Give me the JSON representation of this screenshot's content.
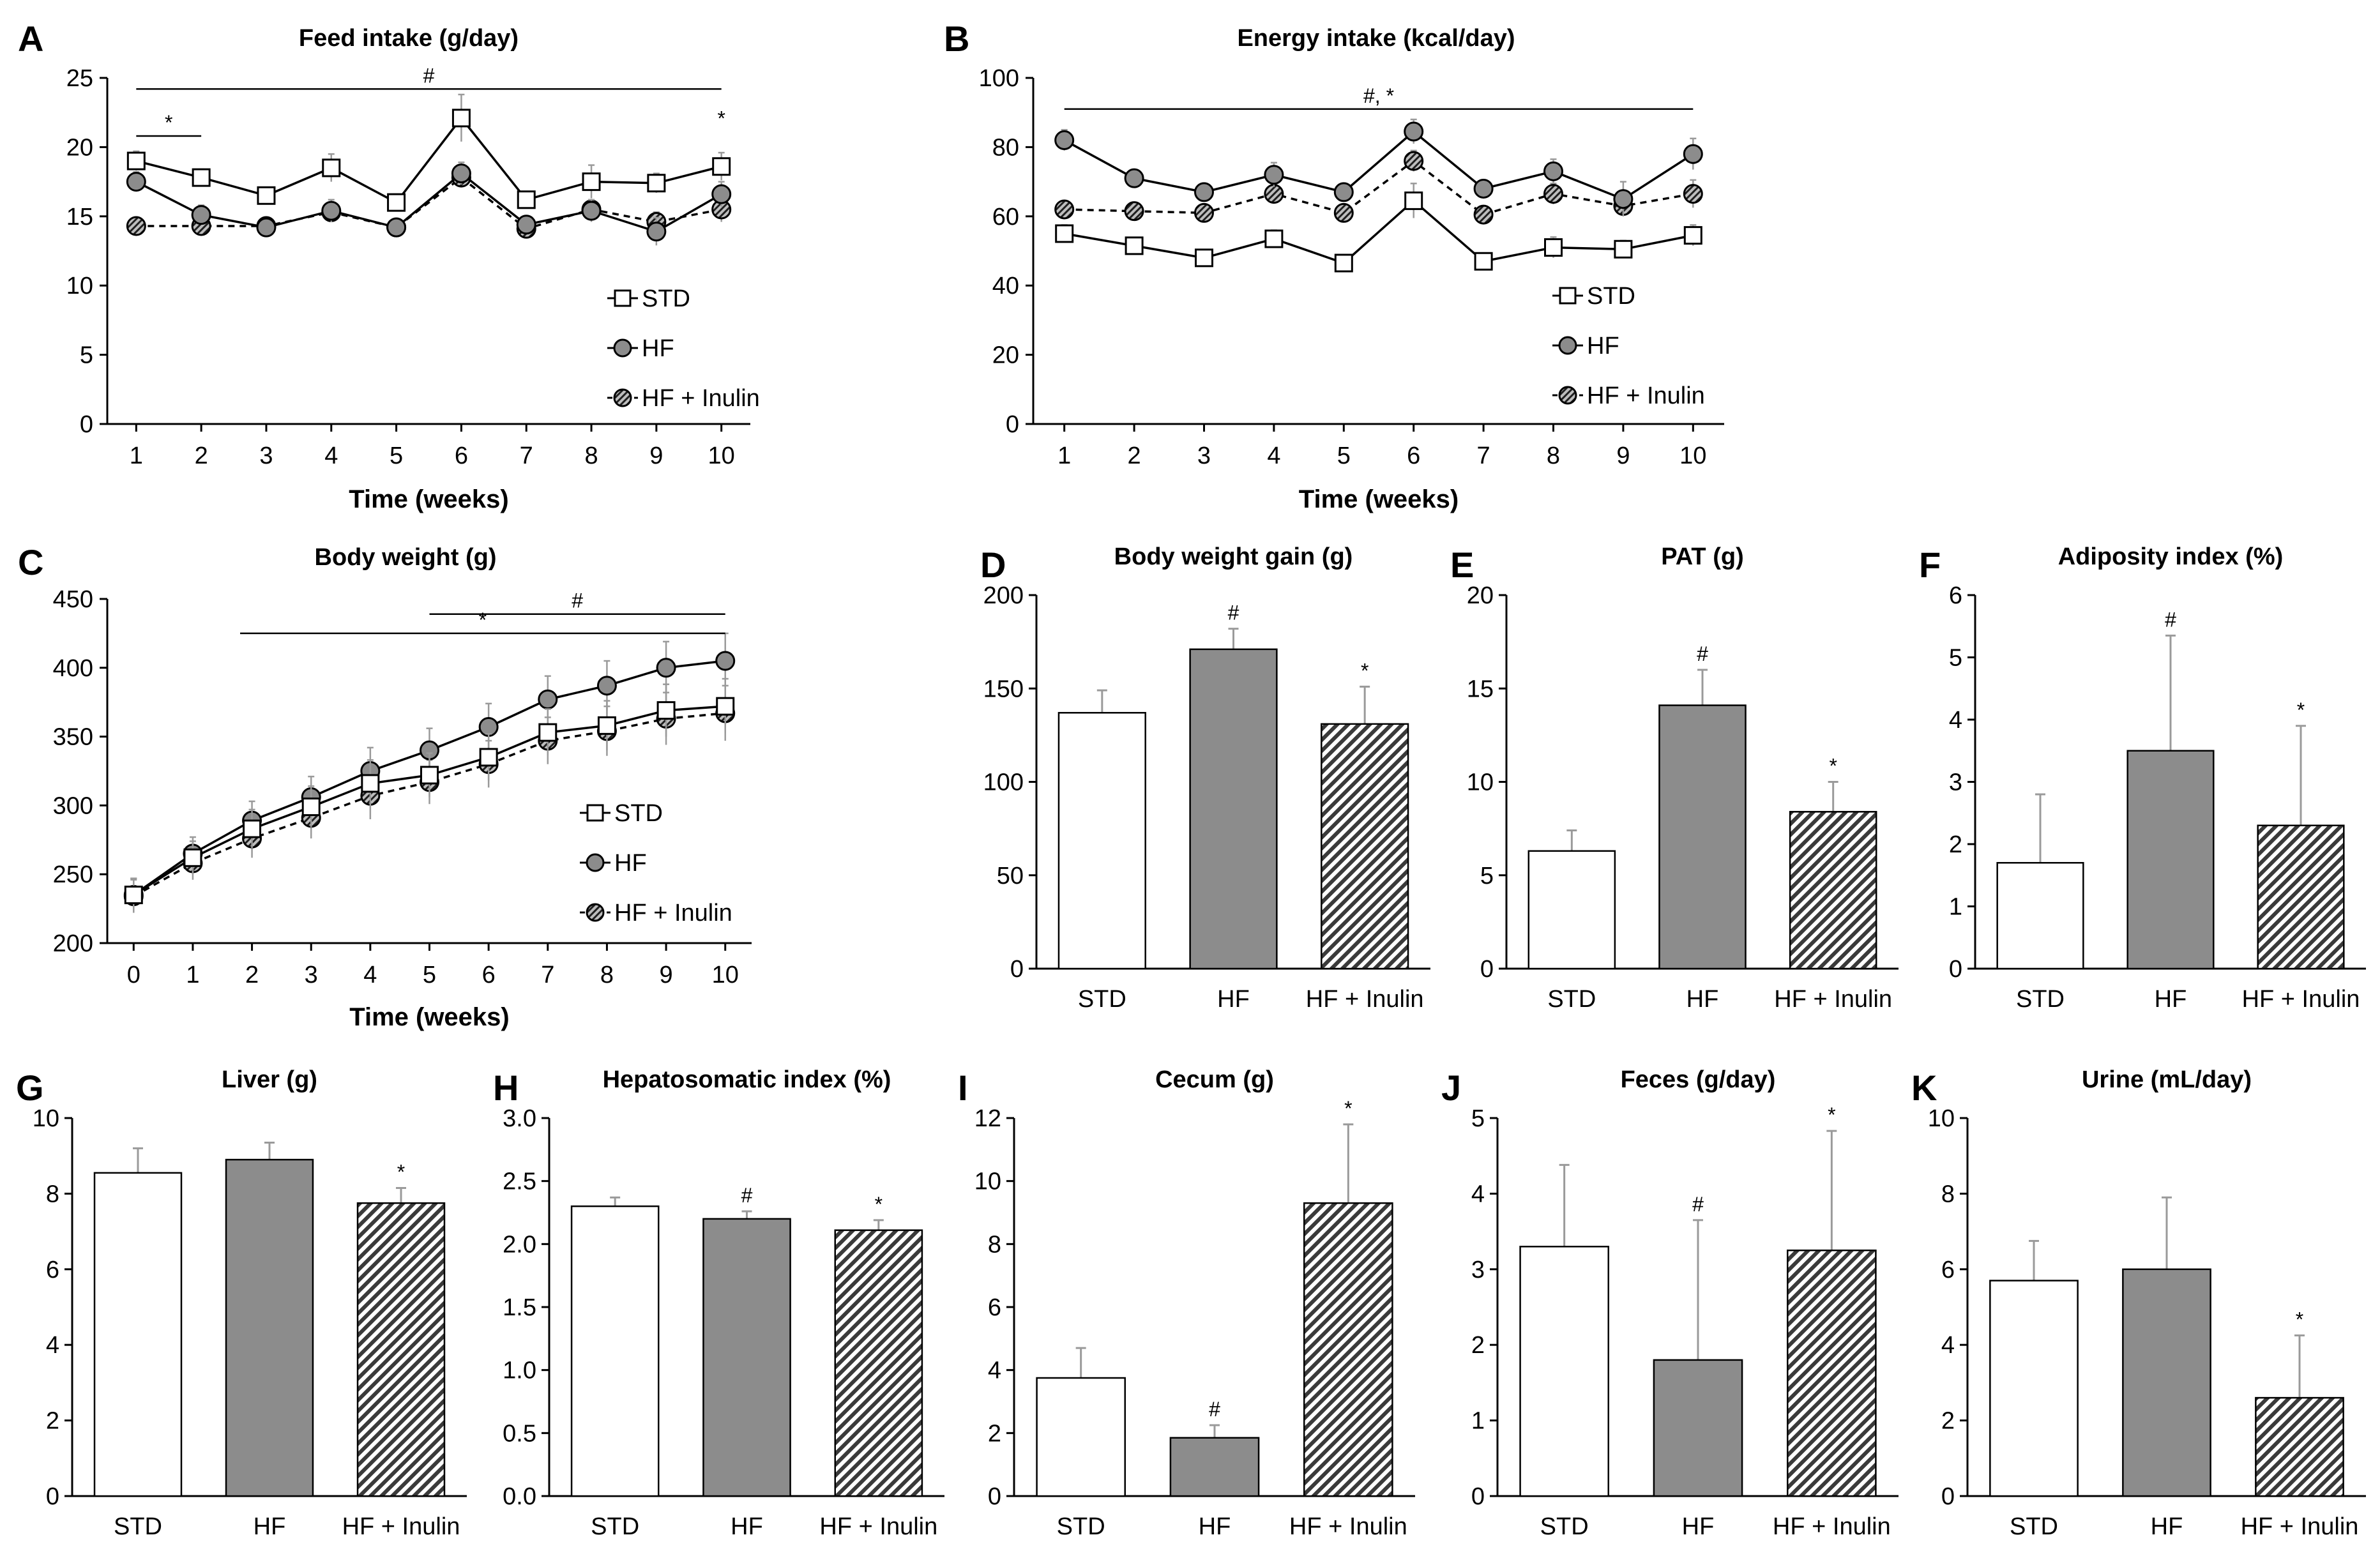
{
  "figure_title": "",
  "chart_data": [
    {
      "id": "A",
      "type": "line",
      "title": "Feed intake (g/day)",
      "xlabel": "Time (weeks)",
      "ylabel": "",
      "x": [
        1,
        2,
        3,
        4,
        5,
        6,
        7,
        8,
        9,
        10
      ],
      "ylim": [
        0,
        25
      ],
      "yticks": [
        0,
        5,
        10,
        15,
        20,
        25
      ],
      "series": [
        {
          "name": "STD",
          "values": [
            19,
            17.8,
            16.5,
            18.5,
            16,
            22.1,
            16.2,
            17.5,
            17.4,
            18.6
          ],
          "errors": [
            0.7,
            0.6,
            0.6,
            1.0,
            0.6,
            1.7,
            0.6,
            1.2,
            0.7,
            1.0
          ]
        },
        {
          "name": "HF",
          "values": [
            17.5,
            15.1,
            14.2,
            15.4,
            14.2,
            18.1,
            14.4,
            15.4,
            13.9,
            16.6
          ],
          "errors": [
            0.7,
            0.7,
            0.5,
            0.8,
            0.5,
            0.8,
            0.6,
            0.8,
            1.0,
            0.9
          ]
        },
        {
          "name": "HF + Inulin",
          "values": [
            14.3,
            14.3,
            14.3,
            15.3,
            14.2,
            17.8,
            14.1,
            15.5,
            14.6,
            15.5
          ],
          "errors": [
            0.5,
            0.5,
            0.5,
            0.6,
            0.5,
            0.7,
            0.5,
            0.7,
            0.7,
            0.9
          ]
        }
      ],
      "annotations": [
        {
          "text": "#",
          "x_from": 1,
          "x_to": 10,
          "level": 24.2
        },
        {
          "text": "*",
          "x_from": 1,
          "x_to": 2,
          "level": 20.8
        },
        {
          "text": "*",
          "x_from": 10,
          "x_to": 10,
          "level": 21.1,
          "line": false
        }
      ],
      "legend": [
        "STD",
        "HF",
        "HF + Inulin"
      ]
    },
    {
      "id": "B",
      "type": "line",
      "title": "Energy intake (kcal/day)",
      "xlabel": "Time (weeks)",
      "ylabel": "",
      "x": [
        1,
        2,
        3,
        4,
        5,
        6,
        7,
        8,
        9,
        10
      ],
      "ylim": [
        0,
        100
      ],
      "yticks": [
        0,
        20,
        40,
        60,
        80,
        100
      ],
      "series": [
        {
          "name": "STD",
          "values": [
            55,
            51.5,
            48,
            53.5,
            46.5,
            64.5,
            47,
            51,
            50.5,
            54.5
          ],
          "errors": [
            2.5,
            2,
            2,
            2.5,
            2,
            5,
            2,
            3,
            2.5,
            3
          ]
        },
        {
          "name": "HF",
          "values": [
            82,
            71,
            67,
            72,
            67,
            84.5,
            68,
            73,
            65,
            78
          ],
          "errors": [
            3,
            2.5,
            2.5,
            3.5,
            2.5,
            3.5,
            2.5,
            3.5,
            5,
            4.5
          ]
        },
        {
          "name": "HF + Inulin",
          "values": [
            62,
            61.5,
            61,
            66.5,
            61,
            76,
            60.5,
            66.5,
            63,
            66.5
          ],
          "errors": [
            2,
            2,
            2,
            2.5,
            2,
            3,
            2,
            3,
            3,
            4
          ]
        }
      ],
      "annotations": [
        {
          "text": "#, *",
          "x_from": 1,
          "x_to": 10,
          "level": 91
        }
      ],
      "legend": [
        "STD",
        "HF",
        "HF + Inulin"
      ]
    },
    {
      "id": "C",
      "type": "line",
      "title": "Body weight (g)",
      "xlabel": "Time (weeks)",
      "ylabel": "",
      "x": [
        0,
        1,
        2,
        3,
        4,
        5,
        6,
        7,
        8,
        9,
        10
      ],
      "ylim": [
        200,
        450
      ],
      "yticks": [
        200,
        250,
        300,
        350,
        400,
        450
      ],
      "series": [
        {
          "name": "STD",
          "values": [
            235,
            262,
            283,
            299,
            316,
            322,
            335,
            353,
            358,
            369,
            372
          ],
          "errors": [
            12,
            12,
            14,
            15,
            17,
            16,
            17,
            17,
            18,
            19,
            20
          ]
        },
        {
          "name": "HF",
          "values": [
            235,
            265,
            289,
            306,
            325,
            340,
            357,
            377,
            387,
            400,
            405
          ],
          "errors": [
            12,
            12,
            14,
            15,
            17,
            16,
            17,
            17,
            18,
            19,
            20
          ]
        },
        {
          "name": "HF + Inulin",
          "values": [
            234,
            258,
            276,
            291,
            307,
            317,
            330,
            347,
            354,
            363,
            367
          ],
          "errors": [
            12,
            12,
            14,
            15,
            17,
            16,
            17,
            17,
            18,
            19,
            20
          ]
        }
      ],
      "annotations": [
        {
          "text": "#",
          "x_from": 5,
          "x_to": 10,
          "level": 439
        },
        {
          "text": "*",
          "x_from": 1.8,
          "x_to": 10,
          "level": 425
        }
      ],
      "legend": [
        "STD",
        "HF",
        "HF + Inulin"
      ]
    },
    {
      "id": "D",
      "type": "bar",
      "title": "Body weight gain (g)",
      "categories": [
        "STD",
        "HF",
        "HF + Inulin"
      ],
      "values": [
        137,
        171,
        131
      ],
      "errors": [
        12,
        11,
        20
      ],
      "significance": [
        "",
        "#",
        "*"
      ],
      "ylim": [
        0,
        200
      ],
      "yticks": [
        0,
        50,
        100,
        150,
        200
      ],
      "ytick_labels": [
        "0",
        "50",
        "100",
        "150",
        "200"
      ]
    },
    {
      "id": "E",
      "type": "bar",
      "title": "PAT (g)",
      "categories": [
        "STD",
        "HF",
        "HF + Inulin"
      ],
      "values": [
        6.3,
        14.1,
        8.4
      ],
      "errors": [
        1.1,
        1.9,
        1.6
      ],
      "significance": [
        "",
        "#",
        "*"
      ],
      "ylim": [
        0,
        20
      ],
      "yticks": [
        0,
        5,
        10,
        15,
        20
      ],
      "ytick_labels": [
        "0",
        "5",
        "10",
        "15",
        "20"
      ]
    },
    {
      "id": "F",
      "type": "bar",
      "title": "Adiposity index (%)",
      "categories": [
        "STD",
        "HF",
        "HF + Inulin"
      ],
      "values": [
        1.7,
        3.5,
        2.3
      ],
      "errors": [
        1.1,
        1.85,
        1.6
      ],
      "significance": [
        "",
        "#",
        "*"
      ],
      "ylim": [
        0,
        6
      ],
      "yticks": [
        0,
        1,
        2,
        3,
        4,
        5,
        6
      ],
      "ytick_labels": [
        "0",
        "1",
        "2",
        "3",
        "4",
        "5",
        "6"
      ]
    },
    {
      "id": "G",
      "type": "bar",
      "title": "Liver (g)",
      "categories": [
        "STD",
        "HF",
        "HF + Inulin"
      ],
      "values": [
        8.55,
        8.9,
        7.75
      ],
      "errors": [
        0.65,
        0.45,
        0.4
      ],
      "significance": [
        "",
        "",
        "*"
      ],
      "ylim": [
        0,
        10
      ],
      "yticks": [
        0,
        2,
        4,
        6,
        8,
        10
      ],
      "ytick_labels": [
        "0",
        "2",
        "4",
        "6",
        "8",
        "10"
      ]
    },
    {
      "id": "H",
      "type": "bar",
      "title": "Hepatosomatic index (%)",
      "categories": [
        "STD",
        "HF",
        "HF + Inulin"
      ],
      "values": [
        2.3,
        2.2,
        2.11
      ],
      "errors": [
        0.07,
        0.06,
        0.08
      ],
      "significance": [
        "",
        "#",
        "*"
      ],
      "ylim": [
        0,
        3
      ],
      "yticks": [
        0,
        0.5,
        1,
        1.5,
        2,
        2.5,
        3
      ],
      "ytick_labels": [
        "0.0",
        "0.5",
        "1.0",
        "1.5",
        "2.0",
        "2.5",
        "3.0"
      ]
    },
    {
      "id": "I",
      "type": "bar",
      "title": "Cecum (g)",
      "categories": [
        "STD",
        "HF",
        "HF + Inulin"
      ],
      "values": [
        3.75,
        1.85,
        9.3
      ],
      "errors": [
        0.95,
        0.4,
        2.5
      ],
      "significance": [
        "",
        "#",
        "*"
      ],
      "ylim": [
        0,
        12
      ],
      "yticks": [
        0,
        2,
        4,
        6,
        8,
        10,
        12
      ],
      "ytick_labels": [
        "0",
        "2",
        "4",
        "6",
        "8",
        "10",
        "12"
      ]
    },
    {
      "id": "J",
      "type": "bar",
      "title": "Feces (g/day)",
      "categories": [
        "STD",
        "HF",
        "HF + Inulin"
      ],
      "values": [
        3.3,
        1.8,
        3.25
      ],
      "errors": [
        1.08,
        1.85,
        1.58
      ],
      "significance": [
        "",
        "#",
        "*"
      ],
      "ylim": [
        0,
        5
      ],
      "yticks": [
        0,
        1,
        2,
        3,
        4,
        5
      ],
      "ytick_labels": [
        "0",
        "1",
        "2",
        "3",
        "4",
        "5"
      ]
    },
    {
      "id": "K",
      "type": "bar",
      "title": "Urine (mL/day)",
      "categories": [
        "STD",
        "HF",
        "HF + Inulin"
      ],
      "values": [
        5.7,
        6.0,
        2.6
      ],
      "errors": [
        1.05,
        1.9,
        1.65
      ],
      "significance": [
        "",
        "",
        "*"
      ],
      "ylim": [
        0,
        10
      ],
      "yticks": [
        0,
        2,
        4,
        6,
        8,
        10
      ],
      "ytick_labels": [
        "0",
        "2",
        "4",
        "6",
        "8",
        "10"
      ]
    }
  ]
}
